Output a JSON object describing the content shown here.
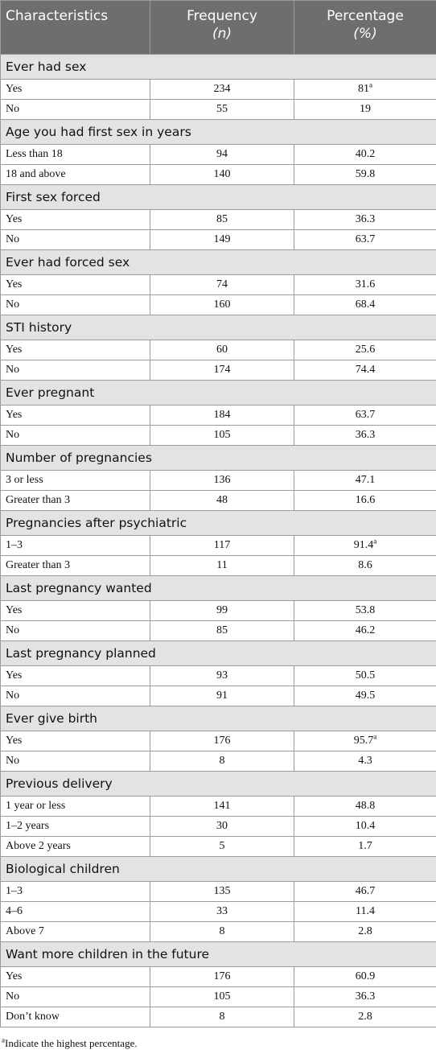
{
  "header": [
    {
      "text": "Characteristics"
    },
    {
      "text": "Frequency",
      "unit": "(n)"
    },
    {
      "text": "Percentage",
      "unit": "(%)"
    }
  ],
  "sections": [
    {
      "title": "Ever had sex",
      "rows": [
        {
          "label": "Yes",
          "n": 234,
          "pct": 81,
          "sup": "a"
        },
        {
          "label": "No",
          "n": 55,
          "pct": 19
        }
      ]
    },
    {
      "title": "Age you had first sex in years",
      "rows": [
        {
          "label": "Less than 18",
          "n": 94,
          "pct": 40.2
        },
        {
          "label": "18 and above",
          "n": 140,
          "pct": 59.8
        }
      ]
    },
    {
      "title": "First sex forced",
      "rows": [
        {
          "label": "Yes",
          "n": 85,
          "pct": 36.3
        },
        {
          "label": "No",
          "n": 149,
          "pct": 63.7
        }
      ]
    },
    {
      "title": "Ever had forced sex",
      "rows": [
        {
          "label": "Yes",
          "n": 74,
          "pct": 31.6
        },
        {
          "label": "No",
          "n": 160,
          "pct": 68.4
        }
      ]
    },
    {
      "title": "STI history",
      "rows": [
        {
          "label": "Yes",
          "n": 60,
          "pct": 25.6
        },
        {
          "label": "No",
          "n": 174,
          "pct": 74.4
        }
      ]
    },
    {
      "title": "Ever pregnant",
      "rows": [
        {
          "label": "Yes",
          "n": 184,
          "pct": 63.7
        },
        {
          "label": "No",
          "n": 105,
          "pct": 36.3
        }
      ]
    },
    {
      "title": "Number of pregnancies",
      "rows": [
        {
          "label": "3 or less",
          "n": 136,
          "pct": 47.1
        },
        {
          "label": "Greater than 3",
          "n": 48,
          "pct": 16.6
        }
      ]
    },
    {
      "title": "Pregnancies after psychiatric",
      "rows": [
        {
          "label": "1–3",
          "n": 117,
          "pct": 91.4,
          "sup": "a"
        },
        {
          "label": "Greater than 3",
          "n": 11,
          "pct": 8.6
        }
      ]
    },
    {
      "title": "Last pregnancy wanted",
      "rows": [
        {
          "label": "Yes",
          "n": 99,
          "pct": 53.8
        },
        {
          "label": "No",
          "n": 85,
          "pct": 46.2
        }
      ]
    },
    {
      "title": "Last pregnancy planned",
      "rows": [
        {
          "label": "Yes",
          "n": 93,
          "pct": 50.5
        },
        {
          "label": "No",
          "n": 91,
          "pct": 49.5
        }
      ]
    },
    {
      "title": "Ever give birth",
      "rows": [
        {
          "label": "Yes",
          "n": 176,
          "pct": 95.7,
          "sup": "a"
        },
        {
          "label": "No",
          "n": 8,
          "pct": 4.3
        }
      ]
    },
    {
      "title": "Previous delivery",
      "rows": [
        {
          "label": "1 year or less",
          "n": 141,
          "pct": 48.8
        },
        {
          "label": "1–2 years",
          "n": 30,
          "pct": 10.4
        },
        {
          "label": "Above 2 years",
          "n": 5,
          "pct": 1.7
        }
      ]
    },
    {
      "title": "Biological children",
      "rows": [
        {
          "label": "1–3",
          "n": 135,
          "pct": 46.7
        },
        {
          "label": "4–6",
          "n": 33,
          "pct": 11.4
        },
        {
          "label": "Above 7",
          "n": 8,
          "pct": 2.8
        }
      ]
    },
    {
      "title": "Want more children in the future",
      "rows": [
        {
          "label": "Yes",
          "n": 176,
          "pct": 60.9
        },
        {
          "label": "No",
          "n": 105,
          "pct": 36.3
        },
        {
          "label": "Don’t know",
          "n": 8,
          "pct": 2.8
        }
      ]
    }
  ],
  "footnote": {
    "marker": "a",
    "text": "Indicate the highest percentage."
  }
}
